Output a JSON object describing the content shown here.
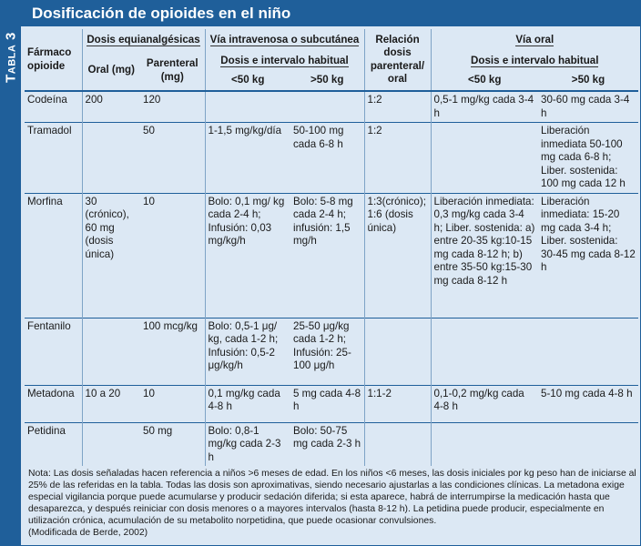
{
  "side_tab": {
    "label_first": "T",
    "label_rest": "ABLA",
    "number": "3"
  },
  "title": "Dosificación de opioides en el niño",
  "headers": {
    "drug": "Fármaco opioide",
    "equi": "Dosis equianalgésicas",
    "equi_oral": "Oral (mg)",
    "equi_parenteral": "Parenteral (mg)",
    "iv": "Vía intravenosa o subcutánea",
    "iv_sub": "Dosis e intervalo habitual",
    "iv_lt50": "<50 kg",
    "iv_gt50": ">50 kg",
    "relation": "Relación dosis parenteral/ oral",
    "oral": "Vía oral",
    "oral_sub": "Dosis e intervalo habitual",
    "oral_lt50": "<50 kg",
    "oral_gt50": ">50 kg"
  },
  "rows": [
    {
      "drug": "Codeína",
      "oral_mg": "200",
      "parenteral_mg": "120",
      "iv_lt50": "",
      "iv_gt50": "",
      "relation": "1:2",
      "oral_lt50": "0,5-1 mg/kg cada 3-4 h",
      "oral_gt50": "30-60 mg cada 3-4 h"
    },
    {
      "drug": "Tramadol",
      "oral_mg": "",
      "parenteral_mg": "50",
      "iv_lt50": "1-1,5 mg/kg/día",
      "iv_gt50": "50-100 mg cada 6-8 h",
      "relation": "1:2",
      "oral_lt50": "",
      "oral_gt50": "Liberación inmediata 50-100 mg cada 6-8 h; Liber. sostenida: 100 mg cada 12 h"
    },
    {
      "drug": "Morfina",
      "oral_mg": "30 (crónico), 60 mg (dosis única)",
      "parenteral_mg": "10",
      "iv_lt50": "Bolo: 0,1 mg/ kg cada 2-4 h; Infusión: 0,03 mg/kg/h",
      "iv_gt50": "Bolo: 5-8 mg cada 2-4 h; infusión: 1,5 mg/h",
      "relation": "1:3(crónico); 1:6 (dosis única)",
      "oral_lt50": "Liberación inmediata: 0,3 mg/kg cada 3-4 h; Liber. sostenida: a) entre 20-35 kg:10-15 mg cada 8-12 h; b) entre 35-50 kg:15-30 mg cada 8-12 h",
      "oral_gt50": "Liberación inmediata: 15-20 mg cada 3-4 h; Liber. sostenida: 30-45 mg cada 8-12 h"
    },
    {
      "drug": "Fentanilo",
      "oral_mg": "",
      "parenteral_mg": "100 mcg/kg",
      "iv_lt50": "Bolo: 0,5-1 μg/ kg, cada 1-2 h; Infusión: 0,5-2 μg/kg/h",
      "iv_gt50": "25-50 μg/kg cada 1-2 h; Infusión: 25- 100 μg/h",
      "relation": "",
      "oral_lt50": "",
      "oral_gt50": ""
    },
    {
      "drug": "Metadona",
      "oral_mg": "10 a  20",
      "parenteral_mg": "10",
      "iv_lt50": "0,1 mg/kg cada 4-8 h",
      "iv_gt50": "5 mg cada 4-8 h",
      "relation": "1:1-2",
      "oral_lt50": "0,1-0,2 mg/kg cada 4-8 h",
      "oral_gt50": "5-10 mg cada 4-8 h"
    },
    {
      "drug": "Petidina",
      "oral_mg": "",
      "parenteral_mg": "50 mg",
      "iv_lt50": "Bolo: 0,8-1 mg/kg cada 2-3 h",
      "iv_gt50": "Bolo: 50-75 mg cada 2-3 h",
      "relation": "",
      "oral_lt50": "",
      "oral_gt50": ""
    }
  ],
  "note": "Nota: Las dosis señaladas hacen referencia a niños >6 meses de edad. En los niños <6 meses, las dosis iniciales por kg peso han de iniciarse al 25% de las referidas en la tabla. Todas las dosis son aproximativas, siendo necesario ajustarlas a las condiciones clínicas. La metadona exige especial vigilancia porque puede acumularse y producir sedación diferida; si esta aparece, habrá de interrumpirse la medicación hasta que desaparezca, y después reiniciar con dosis menores o a mayores intervalos (hasta 8-12 h).  La petidina puede producir, especialmente en utilización crónica, acumulación de su metabolito norpetidina, que puede ocasionar convulsiones.",
  "source": "(Modificada de Berde, 2002)",
  "colors": {
    "accent": "#1f5f9a",
    "background": "#dce8f4",
    "title_text": "#ffffff"
  }
}
